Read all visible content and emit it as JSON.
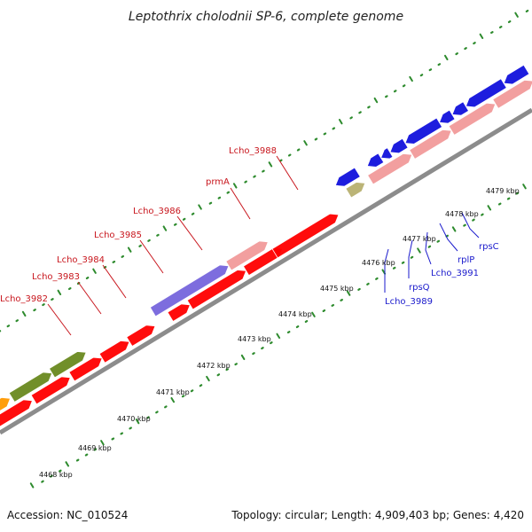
{
  "title": "Leptothrix cholodnii SP-6, complete genome",
  "footer": {
    "accession": "Accession: NC_010524",
    "summary": "Topology: circular; Length: 4,909,403 bp; Genes: 4,420"
  },
  "colors": {
    "red": "#ff0000",
    "pink": "#f29a9a",
    "blue": "#1111dd",
    "purple": "#7766dd",
    "olive": "#6a8a1f",
    "orange": "#ff9900",
    "khaki": "#b8b070",
    "backbone": "#808080",
    "dots": "#2e8b2e",
    "red_label": "#c8161d",
    "blue_label": "#1a1acc"
  },
  "tick_labels": [
    "4468 kbp",
    "4469 kbp",
    "4470 kbp",
    "4471 kbp",
    "4472 kbp",
    "4473 kbp",
    "4474 kbp",
    "4475 kbp",
    "4476 kbp",
    "4477 kbp",
    "4478 kbp",
    "4479 kbp"
  ],
  "gene_labels_red": [
    "Lcho_3982",
    "Lcho_3983",
    "Lcho_3984",
    "Lcho_3985",
    "Lcho_3986",
    "prmA",
    "Lcho_3988"
  ],
  "gene_labels_blue": [
    "Lcho_3989",
    "rpsQ",
    "Lcho_3991",
    "rplP",
    "rpsC"
  ]
}
